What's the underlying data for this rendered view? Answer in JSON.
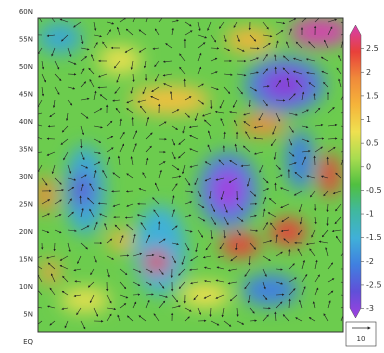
{
  "map": {
    "lat_labels": [
      "60N",
      "55N",
      "50N",
      "45N",
      "40N",
      "35N",
      "30N",
      "25N",
      "20N",
      "15N",
      "10N",
      "5N",
      "EQ"
    ],
    "colorbar": {
      "clim": [
        -3.2,
        3
      ],
      "ticks": [
        2.5,
        2,
        1.5,
        1,
        0.5,
        0,
        -0.5,
        -1,
        -1.5,
        -2,
        -2.5,
        -3
      ],
      "colors": [
        "#d63fb0",
        "#e8403a",
        "#f08a3a",
        "#f5b43a",
        "#efe050",
        "#a8dc50",
        "#50c040",
        "#40b8a0",
        "#40b0d8",
        "#4080e0",
        "#6050d8",
        "#a040e0"
      ]
    },
    "reference_vector": {
      "label": "10"
    }
  }
}
